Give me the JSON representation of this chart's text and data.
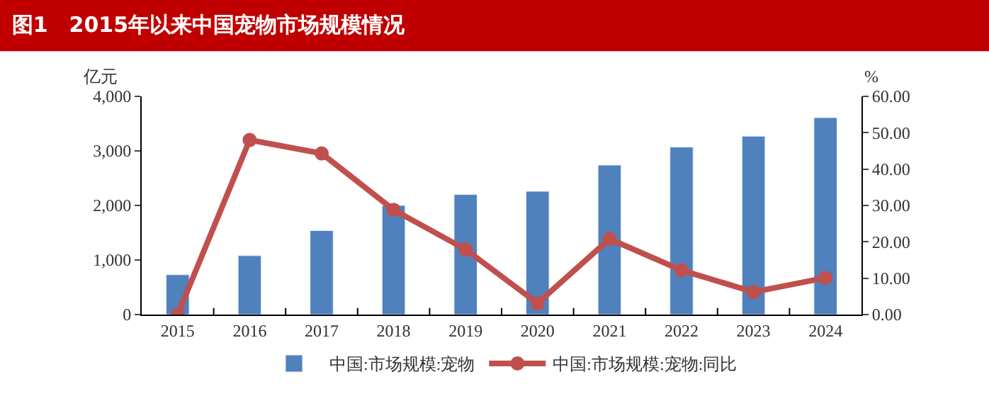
{
  "chart_data": {
    "type": "bar",
    "title": "图1　2015年以来中国宠物市场规模情况",
    "ylabel": "亿元",
    "y2label": "%",
    "categories": [
      "2015",
      "2016",
      "2017",
      "2018",
      "2019",
      "2020",
      "2021",
      "2022",
      "2023",
      "2024"
    ],
    "series": [
      {
        "name": "中国:市场规模:宠物",
        "color": "#4f81bd",
        "values": [
          730,
          1080,
          1540,
          2000,
          2200,
          2260,
          2740,
          3070,
          3270,
          3610
        ]
      },
      {
        "name": "中国:市场规模:宠物:同比",
        "color": "#c0504d",
        "type": "line",
        "axis": "y2",
        "marker": "circle",
        "values": [
          0.0,
          48.0,
          44.3,
          28.8,
          17.9,
          3.1,
          20.8,
          12.2,
          6.2,
          10.1
        ]
      }
    ],
    "ylim": [
      0,
      4000
    ],
    "yticks": [
      0,
      {
        "value": 1000,
        "label": "1,000"
      },
      {
        "value": 2000,
        "label": "2,000"
      },
      {
        "value": 3000,
        "label": "3,000"
      },
      {
        "value": 4000,
        "label": "4,000"
      }
    ],
    "y2lim": [
      0,
      60
    ],
    "y2ticks": [
      {
        "value": 0,
        "label": "0.00"
      },
      {
        "value": 10,
        "label": "10.00"
      },
      {
        "value": 20,
        "label": "20.00"
      },
      {
        "value": 30,
        "label": "30.00"
      },
      {
        "value": 40,
        "label": "40.00"
      },
      {
        "value": 50,
        "label": "50.00"
      },
      {
        "value": 60,
        "label": "60.00"
      }
    ],
    "legend": "bottom"
  }
}
